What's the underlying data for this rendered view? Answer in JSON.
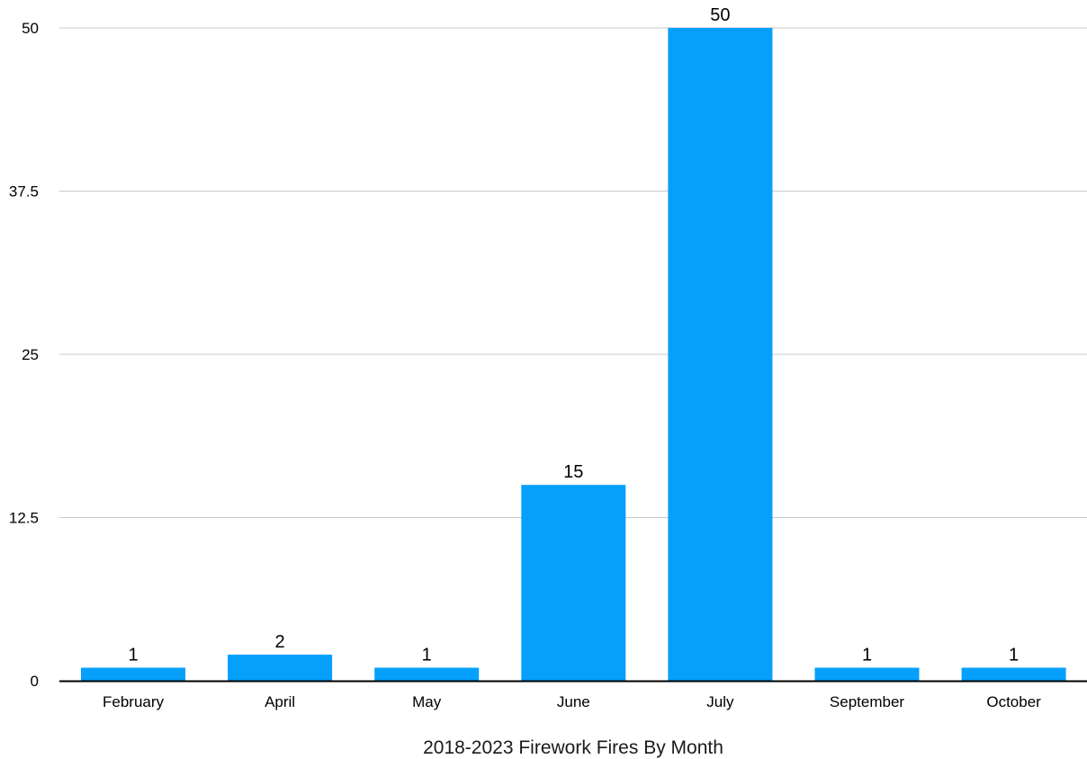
{
  "chart_data": {
    "type": "bar",
    "categories": [
      "February",
      "April",
      "May",
      "June",
      "July",
      "September",
      "October"
    ],
    "values": [
      1,
      2,
      1,
      15,
      50,
      1,
      1
    ],
    "data_labels": [
      "1",
      "2",
      "1",
      "15",
      "50",
      "1",
      "1"
    ],
    "xlabel": "2018-2023 Firework Fires By Month",
    "ylabel": "",
    "ylim": [
      0,
      50
    ],
    "yticks": [
      0,
      12.5,
      25,
      37.5,
      50
    ],
    "ytick_labels": [
      "0",
      "12.5",
      "25",
      "37.5",
      "50"
    ],
    "grid": true,
    "legend": "none",
    "colors": {
      "bar": "#04a0fc",
      "grid": "#c9c9c9",
      "axis": "#000000"
    }
  }
}
